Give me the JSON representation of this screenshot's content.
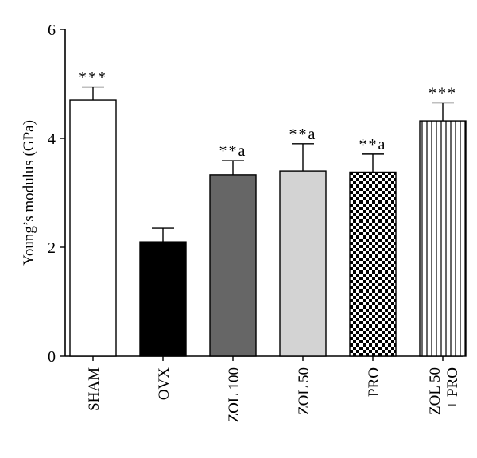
{
  "chart_data": {
    "type": "bar",
    "title": "",
    "ylabel": "Young’s modulus (GPa)",
    "xlabel": "",
    "ylim": [
      0,
      6
    ],
    "yticks": [
      "0",
      "2",
      "4",
      "6"
    ],
    "grid": false,
    "categories": [
      [
        "SHAM"
      ],
      [
        "OVX"
      ],
      [
        "ZOL 100"
      ],
      [
        "ZOL 50"
      ],
      [
        "PRO"
      ],
      [
        "ZOL 50",
        "+ PRO"
      ]
    ],
    "values": [
      4.7,
      2.1,
      3.33,
      3.4,
      3.38,
      4.32
    ],
    "error_upper": [
      0.24,
      0.25,
      0.26,
      0.5,
      0.33,
      0.33
    ],
    "annotations": [
      "***",
      "",
      "**a",
      "**a",
      "**a",
      "***"
    ],
    "fills": [
      "#ffffff",
      "#000000",
      "#666666",
      "#d3d3d3",
      "checkerboard",
      "vertical-stripes"
    ]
  }
}
